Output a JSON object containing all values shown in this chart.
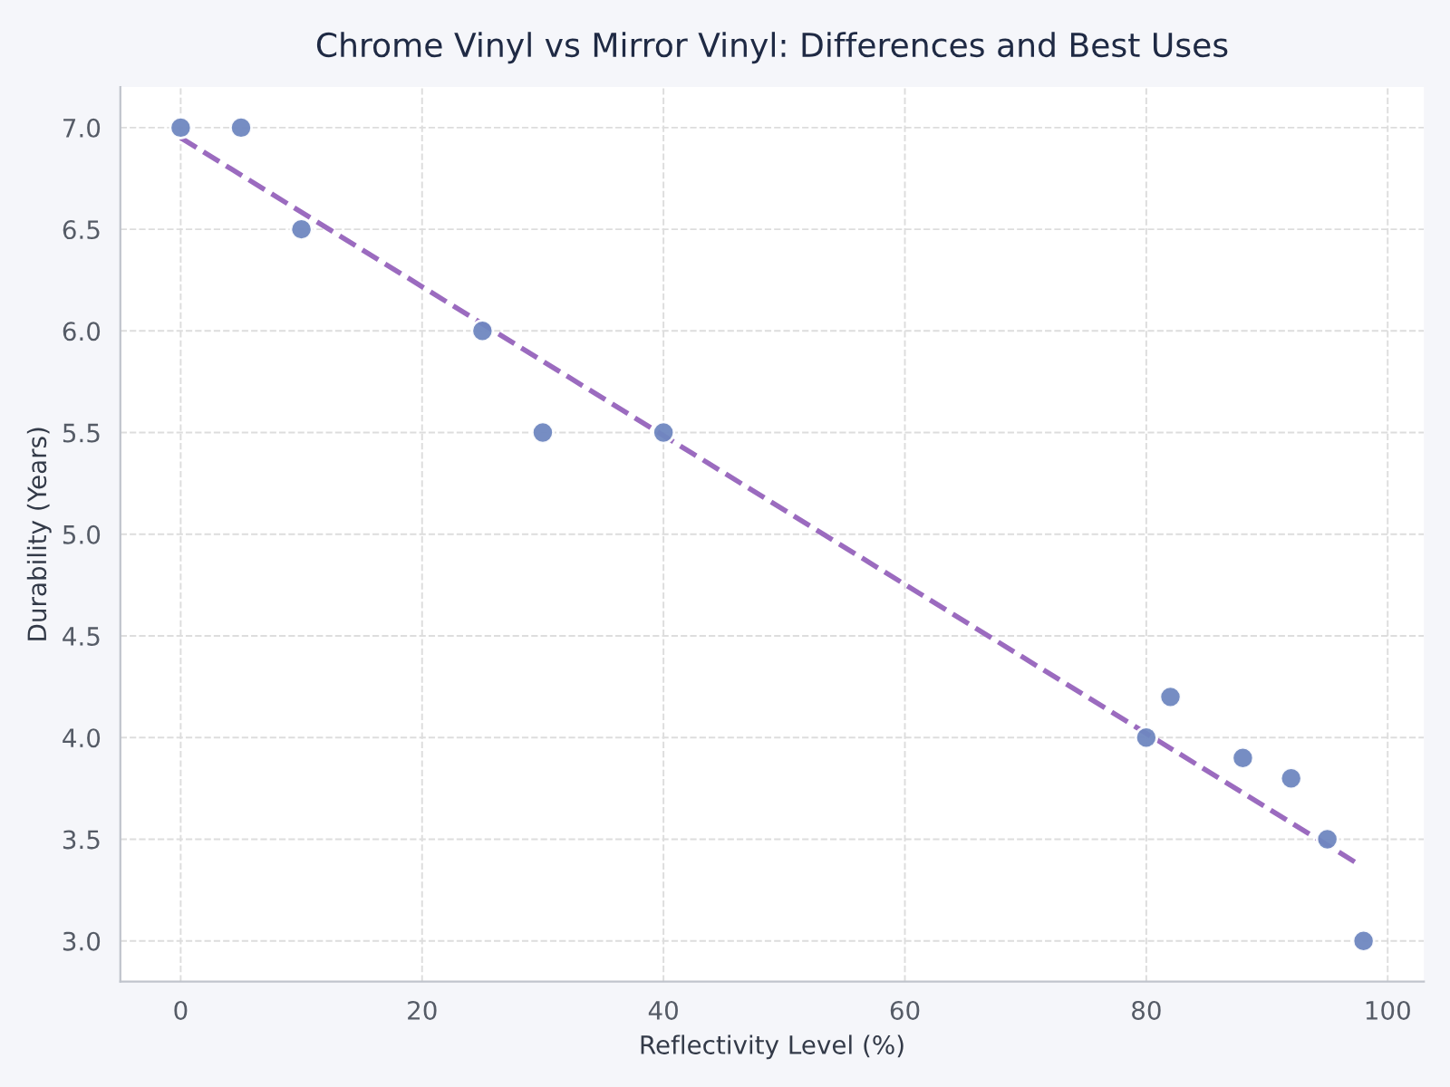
{
  "chart_data": {
    "type": "scatter",
    "title": "Chrome Vinyl vs Mirror Vinyl: Differences and Best Uses",
    "xlabel": "Reflectivity Level (%)",
    "ylabel": "Durability (Years)",
    "series": [
      {
        "color": "#6f87c0",
        "x": [
          0,
          5,
          10,
          25,
          30,
          40,
          80,
          82,
          88,
          92,
          95,
          98
        ],
        "values": [
          7.0,
          7.0,
          6.5,
          6.0,
          5.5,
          5.5,
          4.0,
          4.2,
          3.9,
          3.8,
          3.5,
          3.0
        ]
      },
      {
        "type": "line",
        "color": "#9b6bbf",
        "line_style": "dashed",
        "marker": "none",
        "x": [
          0,
          97.5
        ],
        "values": [
          6.95,
          3.38
        ]
      }
    ],
    "xlim": [
      -5,
      103
    ],
    "ylim": [
      2.8,
      7.2
    ],
    "xticks": [
      0,
      20,
      40,
      60,
      80,
      100
    ],
    "yticks": [
      {
        "value": 3,
        "label": "3.0"
      },
      {
        "value": 3.5,
        "label": "3.5"
      },
      {
        "value": 4,
        "label": "4.0"
      },
      {
        "value": 4.5,
        "label": "4.5"
      },
      {
        "value": 5,
        "label": "5.0"
      },
      {
        "value": 5.5,
        "label": "5.5"
      },
      {
        "value": 6,
        "label": "6.0"
      },
      {
        "value": 6.5,
        "label": "6.5"
      },
      {
        "value": 7,
        "label": "7.0"
      }
    ],
    "grid": true,
    "marker": "circle"
  }
}
